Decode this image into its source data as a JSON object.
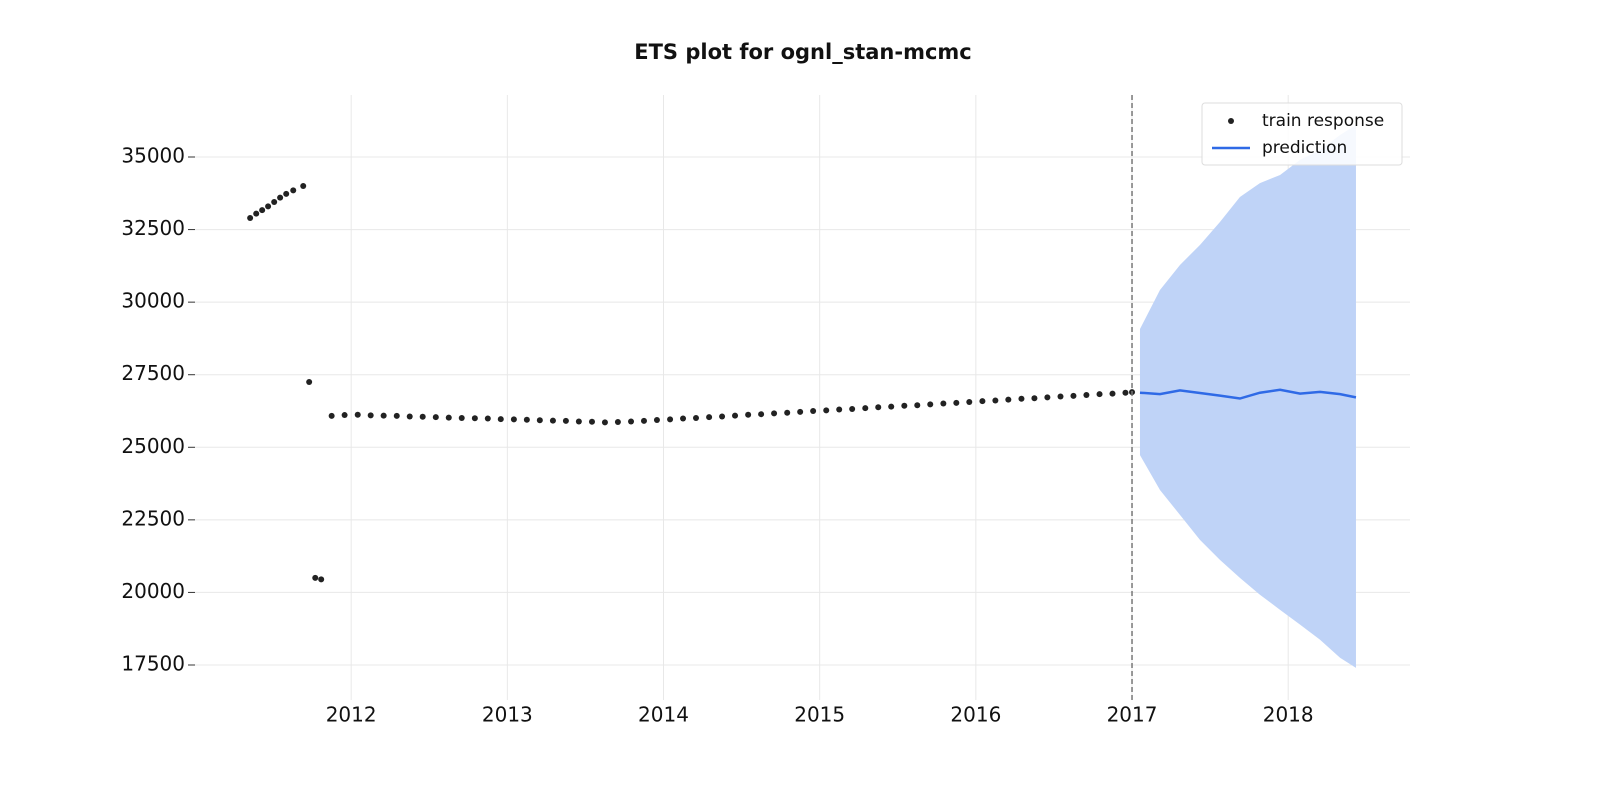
{
  "chart_data": {
    "type": "forecast",
    "title": "ETS plot for ognl_stan-mcmc",
    "xlim": [
      2011.0,
      2018.78
    ],
    "xticks": [
      2012,
      2013,
      2014,
      2015,
      2016,
      2017,
      2018
    ],
    "ylim": [
      16294,
      37136
    ],
    "yticks": [
      17500,
      20000,
      22500,
      25000,
      27500,
      30000,
      32500,
      35000
    ],
    "grid": true,
    "legend": "upper right",
    "vline": 2017,
    "series": [
      {
        "name": "train response",
        "kind": "scatter",
        "color": "#222222",
        "x": [
          2011.353,
          2011.392,
          2011.43,
          2011.468,
          2011.507,
          2011.545,
          2011.584,
          2011.629,
          2011.693,
          2011.731,
          2011.77,
          2011.808,
          2011.875,
          2011.958,
          2012.042,
          2012.125,
          2012.208,
          2012.292,
          2012.375,
          2012.458,
          2012.542,
          2012.625,
          2012.708,
          2012.792,
          2012.875,
          2012.958,
          2013.042,
          2013.125,
          2013.208,
          2013.292,
          2013.375,
          2013.458,
          2013.542,
          2013.625,
          2013.708,
          2013.792,
          2013.875,
          2013.958,
          2014.042,
          2014.125,
          2014.208,
          2014.292,
          2014.375,
          2014.458,
          2014.542,
          2014.625,
          2014.708,
          2014.792,
          2014.875,
          2014.958,
          2015.042,
          2015.125,
          2015.208,
          2015.292,
          2015.375,
          2015.458,
          2015.542,
          2015.625,
          2015.708,
          2015.792,
          2015.875,
          2015.958,
          2016.042,
          2016.125,
          2016.208,
          2016.292,
          2016.375,
          2016.458,
          2016.542,
          2016.625,
          2016.708,
          2016.792,
          2016.875,
          2016.958,
          2017.0
        ],
        "values": [
          32900,
          33050,
          33170,
          33300,
          33450,
          33600,
          33730,
          33850,
          34000,
          27250,
          20500,
          20450,
          26080,
          26110,
          26120,
          26100,
          26090,
          26080,
          26060,
          26050,
          26040,
          26020,
          26010,
          26000,
          25990,
          25970,
          25960,
          25950,
          25930,
          25920,
          25910,
          25890,
          25880,
          25860,
          25870,
          25890,
          25910,
          25940,
          25960,
          25990,
          26010,
          26040,
          26060,
          26090,
          26120,
          26140,
          26170,
          26190,
          26220,
          26250,
          26270,
          26300,
          26320,
          26350,
          26380,
          26400,
          26430,
          26450,
          26480,
          26510,
          26530,
          26560,
          26590,
          26610,
          26640,
          26670,
          26690,
          26720,
          26750,
          26770,
          26800,
          26830,
          26850,
          26880,
          26900
        ]
      },
      {
        "name": "prediction",
        "kind": "line",
        "color": "#2f6ae6",
        "band_color": "#bfd3f7",
        "x": [
          2017.051,
          2017.179,
          2017.307,
          2017.435,
          2017.563,
          2017.691,
          2017.819,
          2017.948,
          2018.076,
          2018.204,
          2018.332,
          2018.434
        ],
        "values": [
          26880,
          26830,
          26960,
          26870,
          26780,
          26680,
          26880,
          26980,
          26850,
          26910,
          26830,
          26720
        ],
        "lower": [
          24730,
          23530,
          22670,
          21810,
          21120,
          20500,
          19920,
          19400,
          18890,
          18370,
          17750,
          17400
        ],
        "upper": [
          29075,
          30420,
          31280,
          31970,
          32760,
          33620,
          34100,
          34380,
          34900,
          35240,
          35760,
          36100
        ]
      }
    ]
  }
}
